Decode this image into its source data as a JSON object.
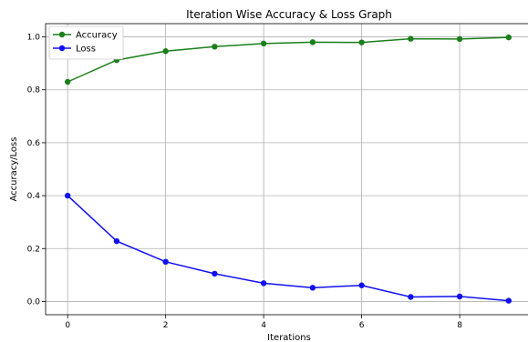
{
  "chart_data": {
    "type": "line",
    "title": "Iteration Wise Accuracy & Loss Graph",
    "xlabel": "Iterations",
    "ylabel": "Accuracy/Loss",
    "x": [
      0,
      1,
      2,
      3,
      4,
      5,
      6,
      7,
      8,
      9
    ],
    "xlim": [
      -0.45,
      9.45
    ],
    "ylim": [
      -0.05,
      1.05
    ],
    "xticks": [
      0,
      2,
      4,
      6,
      8
    ],
    "yticks": [
      0.0,
      0.2,
      0.4,
      0.6,
      0.8,
      1.0
    ],
    "xtick_labels": [
      "0",
      "2",
      "4",
      "6",
      "8"
    ],
    "ytick_labels": [
      "0.0",
      "0.2",
      "0.4",
      "0.6",
      "0.8",
      "1.0"
    ],
    "grid": true,
    "legend_position": "top-left",
    "series": [
      {
        "name": "Accuracy",
        "color": "#1a7f1a",
        "values": [
          0.83,
          0.912,
          0.946,
          0.963,
          0.975,
          0.98,
          0.979,
          0.993,
          0.992,
          0.998
        ]
      },
      {
        "name": "Loss",
        "color": "#1010ee",
        "values": [
          0.4,
          0.228,
          0.15,
          0.105,
          0.069,
          0.052,
          0.061,
          0.017,
          0.019,
          0.003
        ]
      }
    ]
  }
}
